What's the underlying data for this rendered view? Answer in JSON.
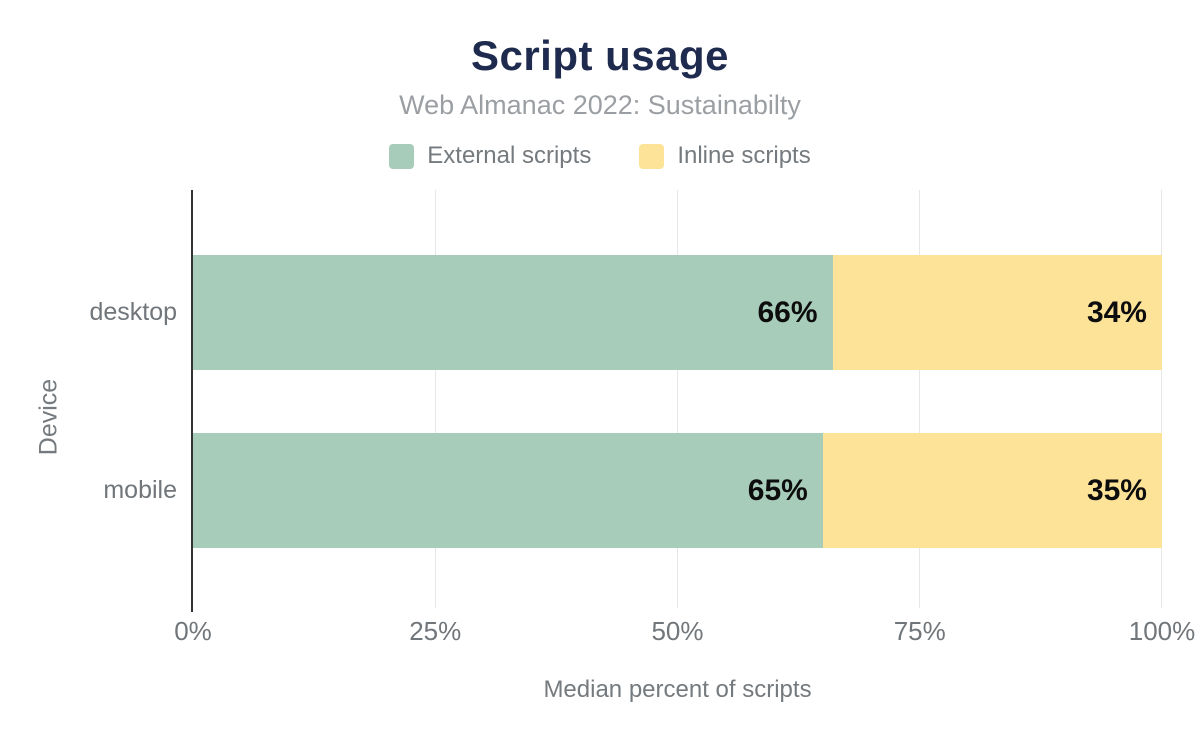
{
  "title": "Script usage",
  "subtitle": "Web Almanac 2022: Sustainabilty",
  "legend": [
    {
      "label": "External scripts",
      "color": "#a8ccba",
      "icon": "green-swatch-icon"
    },
    {
      "label": "Inline scripts",
      "color": "#fde398",
      "icon": "yellow-swatch-icon"
    }
  ],
  "chart_data": {
    "type": "bar",
    "orientation": "horizontal",
    "stacked": true,
    "title": "Script usage",
    "subtitle": "Web Almanac 2022: Sustainabilty",
    "categories": [
      "desktop",
      "mobile"
    ],
    "series": [
      {
        "name": "External scripts",
        "color": "#a8ccba",
        "values": [
          66,
          65
        ]
      },
      {
        "name": "Inline scripts",
        "color": "#fde398",
        "values": [
          34,
          35
        ]
      }
    ],
    "data_labels": [
      [
        "66%",
        "34%"
      ],
      [
        "65%",
        "35%"
      ]
    ],
    "xlabel": "Median percent of scripts",
    "ylabel": "Device",
    "x_ticks": [
      "0%",
      "25%",
      "50%",
      "75%",
      "100%"
    ],
    "x_tick_positions": [
      0,
      25,
      50,
      75,
      100
    ],
    "xlim": [
      0,
      100
    ],
    "grid": true,
    "legend_position": "top"
  },
  "colors": {
    "title_text": "#1f2b4e",
    "subtitle_text": "#9b9fa3",
    "axis_text": "#71767b",
    "gridline": "#e7e7e7",
    "axis_line": "#333333",
    "value_label_text": "#0d0d0d"
  }
}
